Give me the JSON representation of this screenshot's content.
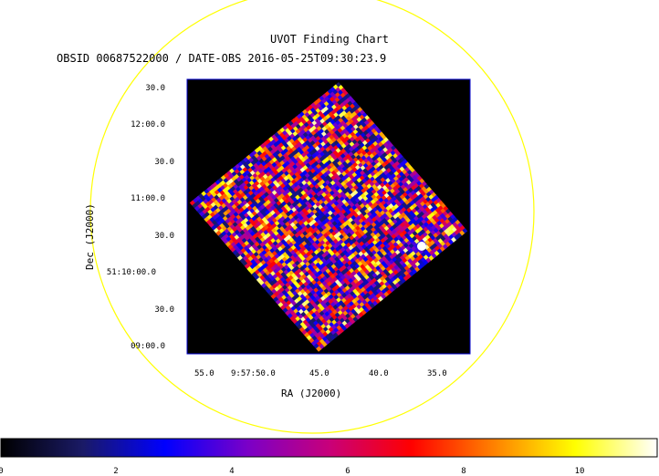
{
  "header": {
    "title": "UVOT Finding Chart",
    "subtitle": "OBSID 00687522000 / DATE-OBS 2016-05-25T09:30:23.9"
  },
  "axes": {
    "xlabel": "RA (J2000)",
    "ylabel": "Dec (J2000)",
    "x_ticks": [
      "55.0",
      "9:57:50.0",
      "45.0",
      "40.0",
      "35.0"
    ],
    "y_ticks": [
      "30.0",
      "12:00.0",
      "30.0",
      "11:00.0",
      "30.0",
      "51:10:00.0",
      "30.0",
      "09:00.0"
    ]
  },
  "colorbar": {
    "ticks": [
      "0",
      "2",
      "4",
      "6",
      "8",
      "10"
    ],
    "range": [
      0,
      11.3
    ],
    "colors": [
      "#000000",
      "#1a1a66",
      "#0000ff",
      "#7a00c8",
      "#c8007a",
      "#ff0000",
      "#ff8000",
      "#ffff00",
      "#ffffff"
    ]
  },
  "colors": {
    "circle": "#ffff00",
    "frame": "#0000cc",
    "image_background": "#000000"
  },
  "chart_data": {
    "type": "heatmap",
    "title": "UVOT Finding Chart",
    "xlabel": "RA (J2000)",
    "ylabel": "Dec (J2000)",
    "colorbar_range": [
      0,
      11.3
    ],
    "colorbar_ticks": [
      0,
      2,
      4,
      6,
      8,
      10
    ],
    "colormap": "heat"
  }
}
